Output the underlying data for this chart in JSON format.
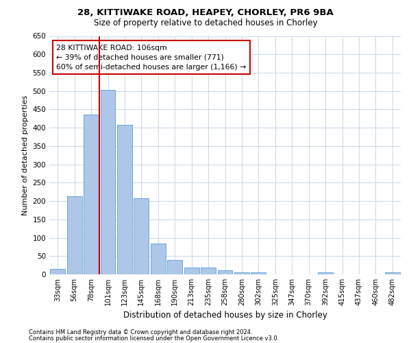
{
  "title1": "28, KITTIWAKE ROAD, HEAPEY, CHORLEY, PR6 9BA",
  "title2": "Size of property relative to detached houses in Chorley",
  "xlabel": "Distribution of detached houses by size in Chorley",
  "ylabel": "Number of detached properties",
  "categories": [
    "33sqm",
    "56sqm",
    "78sqm",
    "101sqm",
    "123sqm",
    "145sqm",
    "168sqm",
    "190sqm",
    "213sqm",
    "235sqm",
    "258sqm",
    "280sqm",
    "302sqm",
    "325sqm",
    "347sqm",
    "370sqm",
    "392sqm",
    "415sqm",
    "437sqm",
    "460sqm",
    "482sqm"
  ],
  "values": [
    15,
    213,
    435,
    503,
    407,
    207,
    85,
    40,
    18,
    18,
    12,
    6,
    5,
    0,
    0,
    0,
    5,
    0,
    0,
    0,
    5
  ],
  "bar_color": "#aec6e8",
  "bar_edge_color": "#5a9fd4",
  "vline_index": 3,
  "vline_color": "#cc0000",
  "annotation_text": "28 KITTIWAKE ROAD: 106sqm\n← 39% of detached houses are smaller (771)\n60% of semi-detached houses are larger (1,166) →",
  "annotation_box_color": "#ffffff",
  "annotation_box_edge": "#cc0000",
  "ylim": [
    0,
    650
  ],
  "yticks": [
    0,
    50,
    100,
    150,
    200,
    250,
    300,
    350,
    400,
    450,
    500,
    550,
    600,
    650
  ],
  "background_color": "#ffffff",
  "grid_color": "#c8d8e8",
  "footer1": "Contains HM Land Registry data © Crown copyright and database right 2024.",
  "footer2": "Contains public sector information licensed under the Open Government Licence v3.0."
}
